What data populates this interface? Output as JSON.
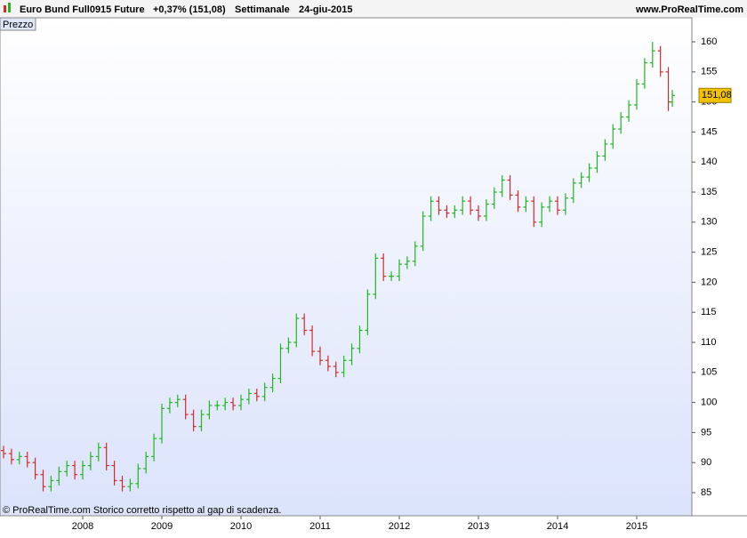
{
  "header": {
    "instrument": "Euro Bund Full0915 Future",
    "change": "+0,37% (151,08)",
    "period": "Settimanale",
    "date": "24-giu-2015",
    "site": "www.ProRealTime.com"
  },
  "panel_label": "Prezzo",
  "footer": "© ProRealTime.com  Storico corretto rispetto al gap di scadenza.",
  "chart_data": {
    "type": "ohlc",
    "x": [
      2007,
      2007.1,
      2007.2,
      2007.3,
      2007.4,
      2007.5,
      2007.6,
      2007.7,
      2007.8,
      2007.9,
      2008,
      2008.1,
      2008.2,
      2008.3,
      2008.4,
      2008.5,
      2008.6,
      2008.7,
      2008.8,
      2008.9,
      2009,
      2009.1,
      2009.2,
      2009.3,
      2009.4,
      2009.5,
      2009.6,
      2009.7,
      2009.8,
      2009.9,
      2010,
      2010.1,
      2010.2,
      2010.3,
      2010.4,
      2010.5,
      2010.6,
      2010.7,
      2010.8,
      2010.9,
      2011,
      2011.1,
      2011.2,
      2011.3,
      2011.4,
      2011.5,
      2011.6,
      2011.7,
      2011.8,
      2011.9,
      2012,
      2012.1,
      2012.2,
      2012.3,
      2012.4,
      2012.5,
      2012.6,
      2012.7,
      2012.8,
      2012.9,
      2013,
      2013.1,
      2013.2,
      2013.3,
      2013.4,
      2013.5,
      2013.6,
      2013.7,
      2013.8,
      2013.9,
      2014,
      2014.1,
      2014.2,
      2014.3,
      2014.4,
      2014.5,
      2014.6,
      2014.7,
      2014.8,
      2014.9,
      2015,
      2015.1,
      2015.2,
      2015.3,
      2015.4,
      2015.45
    ],
    "open": [
      92,
      91.5,
      90.5,
      91,
      90,
      88,
      86,
      87,
      88.5,
      89.5,
      88,
      89.5,
      91,
      92.5,
      89.5,
      87,
      86,
      86.5,
      89,
      91,
      94,
      99,
      100,
      100.5,
      98,
      96,
      98,
      99.5,
      99.5,
      100,
      99.5,
      100.5,
      101.5,
      101,
      102.5,
      104,
      109,
      110,
      114,
      112,
      108.5,
      107,
      106,
      105,
      107,
      109,
      112,
      118,
      124,
      121,
      121,
      123,
      123.5,
      126,
      131,
      133.5,
      132,
      131.5,
      132,
      133.5,
      132,
      131,
      133,
      135,
      137,
      134.5,
      132.5,
      133.5,
      130,
      132.5,
      133.5,
      132,
      134,
      136.5,
      137.5,
      139,
      141,
      143,
      145.5,
      147.5,
      149.5,
      153,
      156.5,
      158.5,
      155,
      150
    ],
    "high": [
      92.8,
      92.3,
      91.8,
      91.8,
      90.8,
      88.8,
      87.8,
      89.3,
      90.3,
      90.3,
      90.3,
      91.8,
      93.3,
      93.3,
      90.3,
      87.8,
      87.3,
      89.8,
      91.8,
      94.8,
      99.8,
      100.8,
      101.3,
      101.3,
      98.8,
      98.8,
      100.3,
      100.3,
      100.8,
      100.8,
      101.3,
      102.3,
      102.3,
      103.3,
      104.8,
      109.8,
      110.8,
      114.8,
      114.8,
      112.8,
      109.3,
      107.8,
      106.8,
      107.8,
      109.8,
      112.8,
      118.8,
      124.8,
      124.8,
      121.8,
      123.8,
      124.3,
      126.8,
      131.8,
      134.3,
      134.3,
      132.8,
      132.8,
      134.3,
      134.3,
      132.8,
      133.8,
      135.8,
      137.8,
      137.8,
      135.3,
      134.3,
      134.3,
      133.3,
      134.3,
      134.3,
      134.8,
      137.3,
      138.3,
      139.8,
      141.8,
      143.8,
      146.3,
      148.3,
      150.3,
      153.8,
      157.3,
      160,
      159.3,
      155.8,
      152
    ],
    "low": [
      90.7,
      89.7,
      89.7,
      89.2,
      87.2,
      85.2,
      85.2,
      86.2,
      87.7,
      87.2,
      87.2,
      88.7,
      90.2,
      88.7,
      86.2,
      85.2,
      85.2,
      85.7,
      88.2,
      90.2,
      93.2,
      98.2,
      99.2,
      97.2,
      95.2,
      95.2,
      97.2,
      98.7,
      98.7,
      98.7,
      98.7,
      99.7,
      100.2,
      100.2,
      101.7,
      103.2,
      108.2,
      109.2,
      111.2,
      107.7,
      106.2,
      105.2,
      104.2,
      104.2,
      106.2,
      108.2,
      111.2,
      117.2,
      120.2,
      120.2,
      120.2,
      122.2,
      122.7,
      125.2,
      130.2,
      131.2,
      130.7,
      130.7,
      131.2,
      131.2,
      130.2,
      130.2,
      132.2,
      134.2,
      133.7,
      131.7,
      131.7,
      129.2,
      129.2,
      131.7,
      131.2,
      131.2,
      133.2,
      135.7,
      136.7,
      138.2,
      140.2,
      142.2,
      144.7,
      146.7,
      148.7,
      152.2,
      155.7,
      154.2,
      148.5,
      149.2
    ],
    "close": [
      91.5,
      90.5,
      91,
      90,
      88,
      86,
      87,
      88.5,
      89.5,
      88,
      89.5,
      91,
      92.5,
      89.5,
      87,
      86,
      86.5,
      89,
      91,
      94,
      99,
      100,
      100.5,
      98,
      96,
      98,
      99.5,
      99.5,
      100,
      99.5,
      100.5,
      101.5,
      101,
      102.5,
      104,
      109,
      110,
      114,
      112,
      108.5,
      107,
      106,
      105,
      107,
      109,
      112,
      118,
      124,
      121,
      121,
      123,
      123.5,
      126,
      131,
      133.5,
      132,
      131.5,
      132,
      133.5,
      132,
      131,
      133,
      135,
      137,
      134.5,
      132.5,
      133.5,
      130,
      132.5,
      133.5,
      132,
      134,
      136.5,
      137.5,
      139,
      141,
      143,
      145.5,
      147.5,
      149.5,
      153,
      156.5,
      158.5,
      155,
      150,
      151.08
    ],
    "up_color": "#22b522",
    "down_color": "#d42a2a",
    "last_price": {
      "value": 151.08,
      "label": "151,08"
    },
    "xlim": [
      2006.955,
      2015.697
    ],
    "xticks": [
      2008,
      2009,
      2010,
      2011,
      2012,
      2013,
      2014,
      2015
    ],
    "ylim": [
      81.15,
      164.0
    ],
    "yticks": [
      85,
      90,
      95,
      100,
      105,
      110,
      115,
      120,
      125,
      130,
      135,
      140,
      145,
      150,
      155,
      160
    ]
  }
}
